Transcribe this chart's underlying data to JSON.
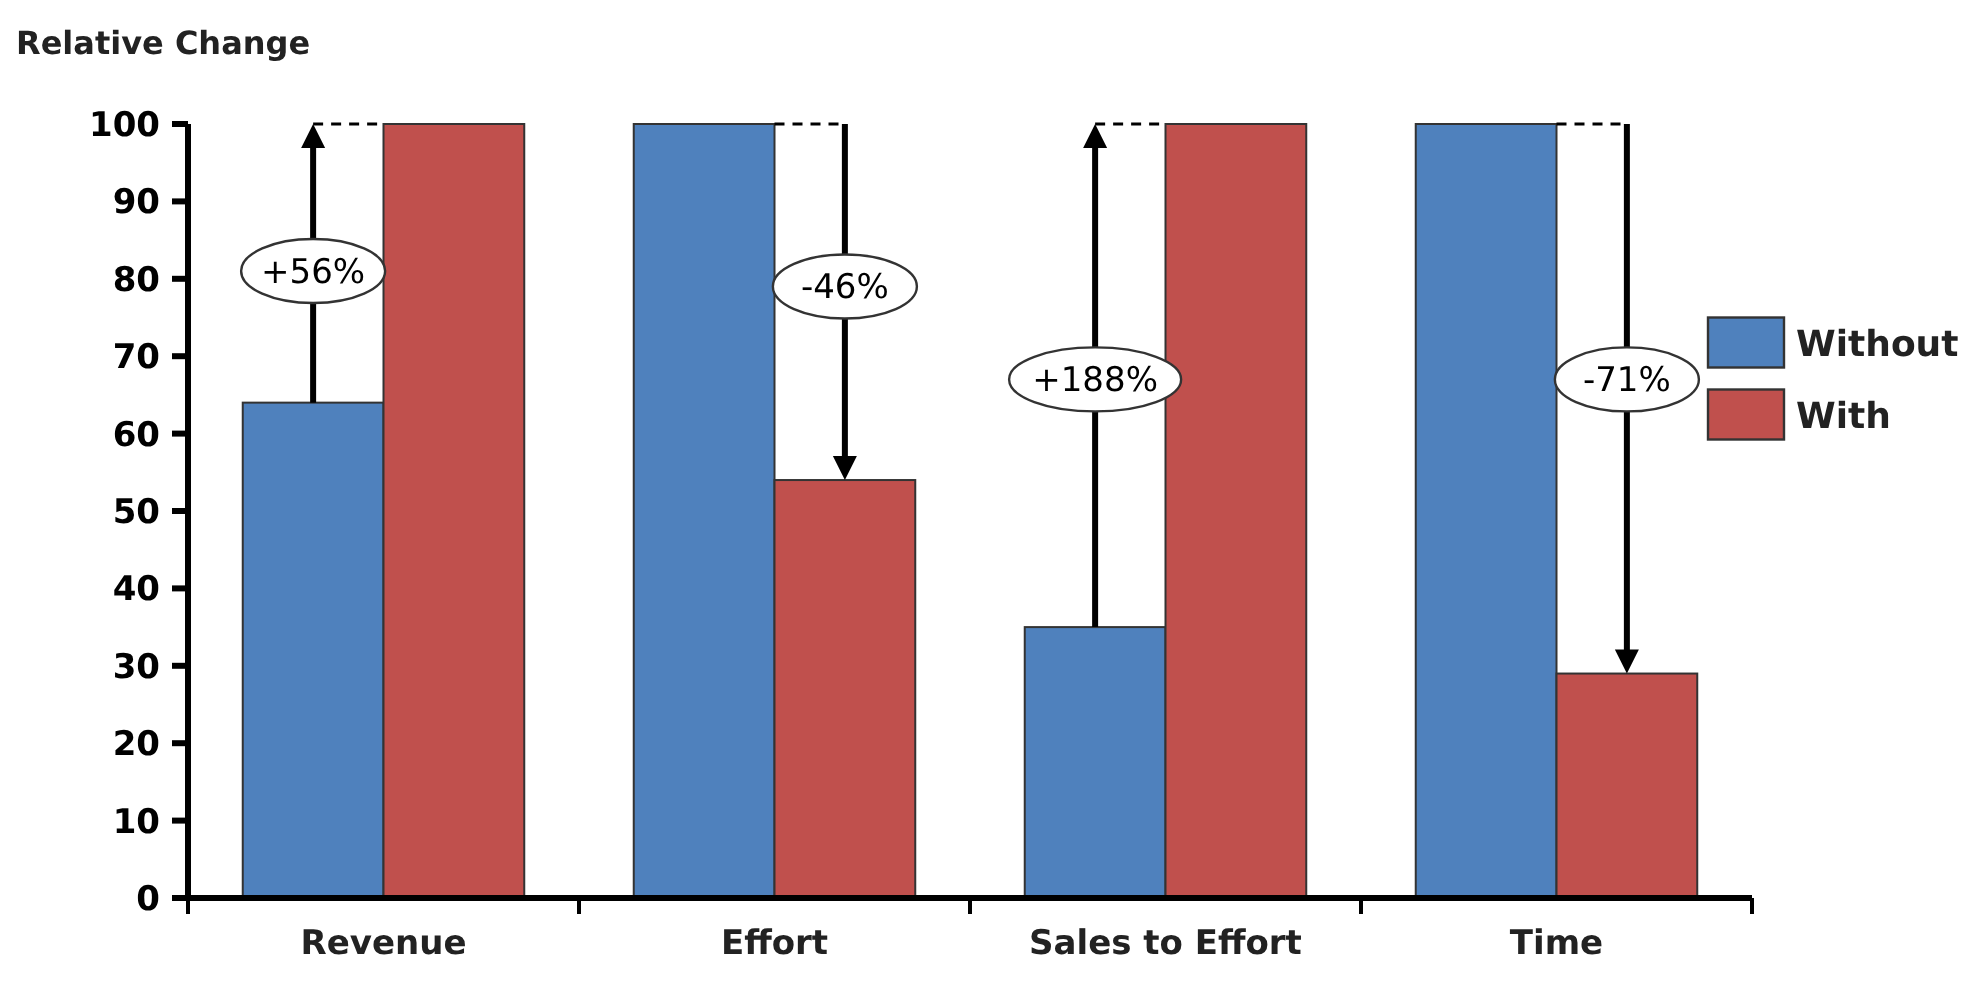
{
  "chart_data": {
    "type": "bar",
    "title": "Relative Change",
    "categories": [
      "Revenue",
      "Effort",
      "Sales to Effort",
      "Time"
    ],
    "series": [
      {
        "name": "Without",
        "color": "#4f81bd",
        "values": [
          64,
          100,
          35,
          100
        ]
      },
      {
        "name": "With",
        "color": "#c0504d",
        "values": [
          100,
          54,
          100,
          29
        ]
      }
    ],
    "ylim": [
      0,
      100
    ],
    "yticks": [
      0,
      10,
      20,
      30,
      40,
      50,
      60,
      70,
      80,
      90,
      100
    ],
    "grid": false,
    "legend": "right",
    "annotations": [
      {
        "text": "+56%",
        "x": "Revenue",
        "y": 81
      },
      {
        "text": "-46%",
        "x": "Effort",
        "y": 79
      },
      {
        "text": "+188%",
        "x": "Sales to Effort",
        "y": 67
      },
      {
        "text": "-71%",
        "x": "Time",
        "y": 67
      }
    ]
  }
}
